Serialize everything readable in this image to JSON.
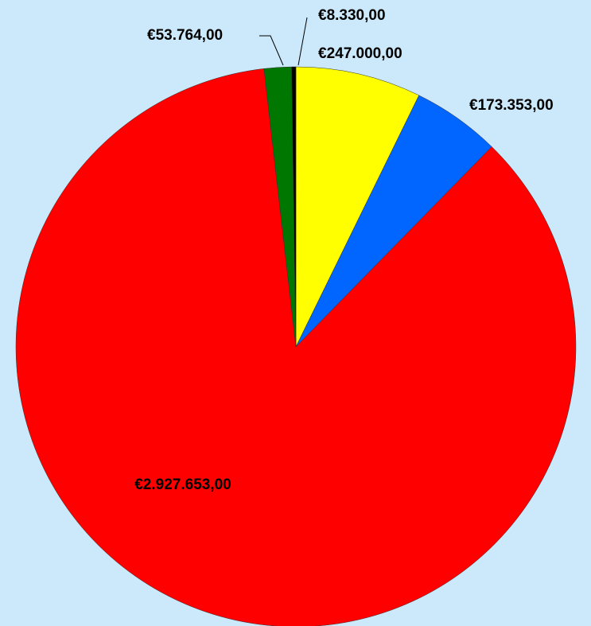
{
  "chart_data": {
    "type": "pie",
    "values": [
      247000,
      173353,
      2927653,
      53764,
      8330
    ],
    "value_labels": [
      "€247.000,00",
      "€173.353,00",
      "€2.927.653,00",
      "€53.764,00",
      "€8.330,00"
    ],
    "colors": [
      "#ffff00",
      "#0066ff",
      "#ff0000",
      "#007700",
      "#000000"
    ]
  }
}
